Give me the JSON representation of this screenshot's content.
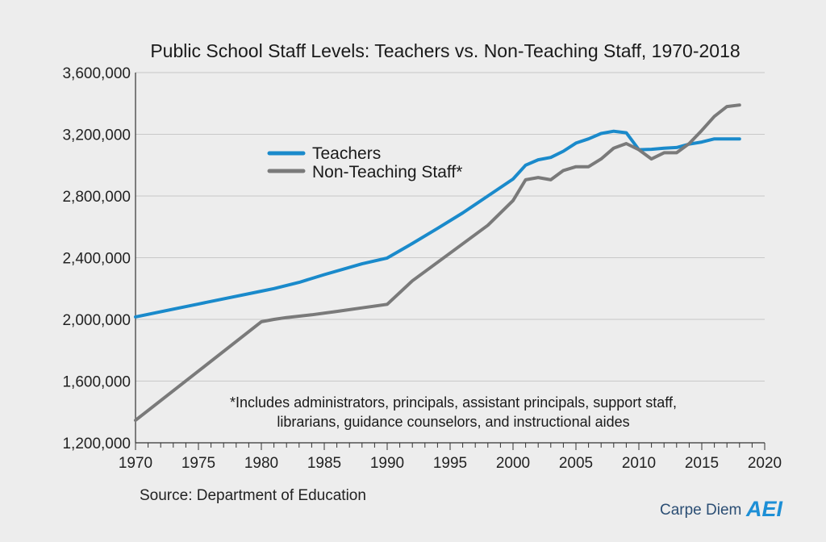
{
  "chart_data": {
    "type": "line",
    "title": "Public School Staff Levels: Teachers vs. Non-Teaching Staff, 1970-2018",
    "xlim": [
      1970,
      2020
    ],
    "ylim": [
      1200000,
      3600000
    ],
    "x_ticks": [
      1970,
      1975,
      1980,
      1985,
      1990,
      1995,
      2000,
      2005,
      2010,
      2015,
      2020
    ],
    "x_tick_labels": [
      "1970",
      "1975",
      "1980",
      "1985",
      "1990",
      "1995",
      "2000",
      "2005",
      "2010",
      "2015",
      "2020"
    ],
    "y_ticks": [
      1200000,
      1600000,
      2000000,
      2400000,
      2800000,
      3200000,
      3600000
    ],
    "y_tick_labels": [
      "1,200,000",
      "1,600,000",
      "2,000,000",
      "2,400,000",
      "2,800,000",
      "3,200,000",
      "3,600,000"
    ],
    "grid": "horizontal",
    "legend_position": "top-left",
    "series": [
      {
        "name": "Teachers",
        "color": "#1a8acb",
        "points": [
          [
            1970,
            2016000
          ],
          [
            1975,
            2100000
          ],
          [
            1980,
            2183000
          ],
          [
            1981,
            2200000
          ],
          [
            1983,
            2240000
          ],
          [
            1985,
            2290000
          ],
          [
            1988,
            2360000
          ],
          [
            1990,
            2398000
          ],
          [
            1992,
            2492000
          ],
          [
            1994,
            2590000
          ],
          [
            1996,
            2690000
          ],
          [
            1998,
            2800000
          ],
          [
            2000,
            2910000
          ],
          [
            2001,
            3000000
          ],
          [
            2002,
            3035000
          ],
          [
            2003,
            3050000
          ],
          [
            2004,
            3090000
          ],
          [
            2005,
            3143000
          ],
          [
            2006,
            3170000
          ],
          [
            2007,
            3205000
          ],
          [
            2008,
            3220000
          ],
          [
            2009,
            3210000
          ],
          [
            2010,
            3100000
          ],
          [
            2011,
            3103000
          ],
          [
            2012,
            3110000
          ],
          [
            2013,
            3114000
          ],
          [
            2014,
            3136000
          ],
          [
            2015,
            3150000
          ],
          [
            2016,
            3170000
          ],
          [
            2017,
            3170000
          ],
          [
            2018,
            3170000
          ]
        ]
      },
      {
        "name": "Non-Teaching Staff*",
        "color": "#7a7a7a",
        "points": [
          [
            1970,
            1346000
          ],
          [
            1975,
            1665000
          ],
          [
            1980,
            1985000
          ],
          [
            1981,
            2000000
          ],
          [
            1982,
            2012000
          ],
          [
            1984,
            2030000
          ],
          [
            1986,
            2052000
          ],
          [
            1988,
            2075000
          ],
          [
            1990,
            2098000
          ],
          [
            1992,
            2250000
          ],
          [
            1995,
            2430000
          ],
          [
            1998,
            2610000
          ],
          [
            2000,
            2770000
          ],
          [
            2001,
            2905000
          ],
          [
            2002,
            2920000
          ],
          [
            2003,
            2905000
          ],
          [
            2004,
            2965000
          ],
          [
            2005,
            2990000
          ],
          [
            2006,
            2990000
          ],
          [
            2007,
            3040000
          ],
          [
            2008,
            3110000
          ],
          [
            2009,
            3140000
          ],
          [
            2010,
            3100000
          ],
          [
            2011,
            3040000
          ],
          [
            2012,
            3080000
          ],
          [
            2013,
            3080000
          ],
          [
            2014,
            3140000
          ],
          [
            2015,
            3225000
          ],
          [
            2016,
            3316000
          ],
          [
            2017,
            3380000
          ],
          [
            2018,
            3390000
          ]
        ]
      }
    ],
    "annotation_lines": [
      "*Includes administrators, principals, assistant principals, support staff,",
      "librarians, guidance counselors, and instructional aides"
    ],
    "source": "Source: Department of Education"
  },
  "brand": {
    "text": "Carpe Diem",
    "mark": "AEI"
  }
}
